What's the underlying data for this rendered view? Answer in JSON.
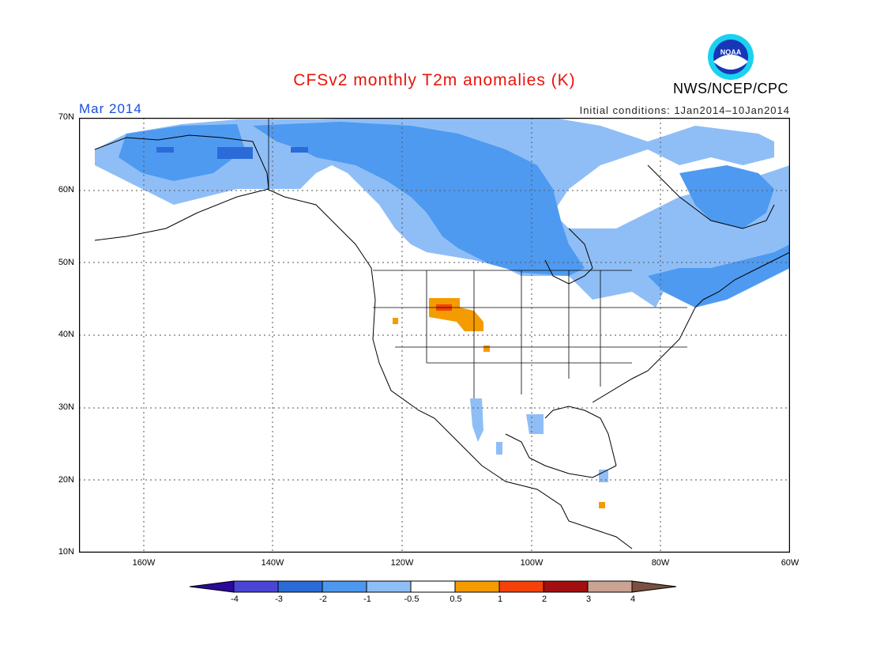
{
  "header": {
    "title": "CFSv2 monthly T2m anomalies (K)",
    "month": "Mar 2014",
    "initial_conditions": "Initial conditions: 1Jan2014–10Jan2014",
    "agency": "NWS/NCEP/CPC",
    "logo_text": "NOAA"
  },
  "map": {
    "region": "North America",
    "lon_range": [
      -170,
      -60
    ],
    "lat_range": [
      10,
      70
    ],
    "lat_labels": [
      "70N",
      "60N",
      "50N",
      "40N",
      "30N",
      "20N",
      "10N"
    ],
    "lon_labels": [
      "160W",
      "140W",
      "120W",
      "100W",
      "80W",
      "60W"
    ],
    "gridlines": "dotted",
    "anomaly_areas": [
      {
        "region": "Alaska / Yukon / northern Canada",
        "anomaly": "-0.5 to -2",
        "color": "#8fbef7"
      },
      {
        "region": "Central Canada / Hudson Bay / Great Lakes / Quebec",
        "anomaly": "-1 to -2",
        "color": "#4e9af0"
      },
      {
        "region": "Wyoming / Utah / Colorado",
        "anomaly": "0.5 to 2",
        "color": "#f49b00"
      },
      {
        "region": "Northern Mexico / Texas",
        "anomaly": "-0.5 to -1",
        "color": "#8fbef7"
      }
    ]
  },
  "colorbar": {
    "ticks": [
      "-4",
      "-3",
      "-2",
      "-1",
      "-0.5",
      "0.5",
      "1",
      "2",
      "3",
      "4"
    ],
    "colors": [
      "#2a0a9a",
      "#4b45d6",
      "#2a6bd8",
      "#4b98ee",
      "#8fbef7",
      "#ffffff",
      "#f49b00",
      "#f4420a",
      "#a30e0e",
      "#caa393",
      "#7a5040"
    ]
  }
}
